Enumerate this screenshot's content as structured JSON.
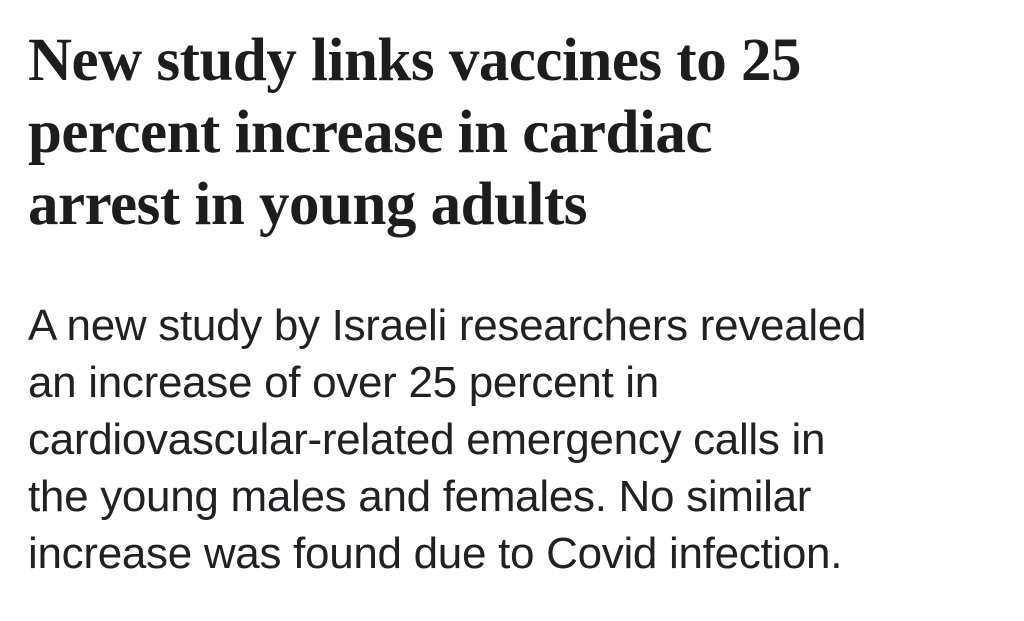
{
  "page": {
    "background_color": "#ffffff"
  },
  "headline": {
    "text": "New study links vaccines to 25 percent increase in cardiac arrest in young adults",
    "lines": [
      "New study links vaccines to 25",
      "percent increase in cardiac",
      "arrest in young adults"
    ],
    "color": "#1d1d1d"
  },
  "body": {
    "text": "A new study by Israeli researchers revealed an increase of over 25 percent in cardiovascular-related emergency calls in the young males and females. No similar increase was found due to Covid infection.",
    "lines": [
      "A new study by Israeli researchers revealed",
      "an increase of over 25 percent in",
      "cardiovascular-related emergency calls in",
      "the young males and females. No similar",
      "increase was found due to Covid infection."
    ],
    "color": "#202124"
  }
}
